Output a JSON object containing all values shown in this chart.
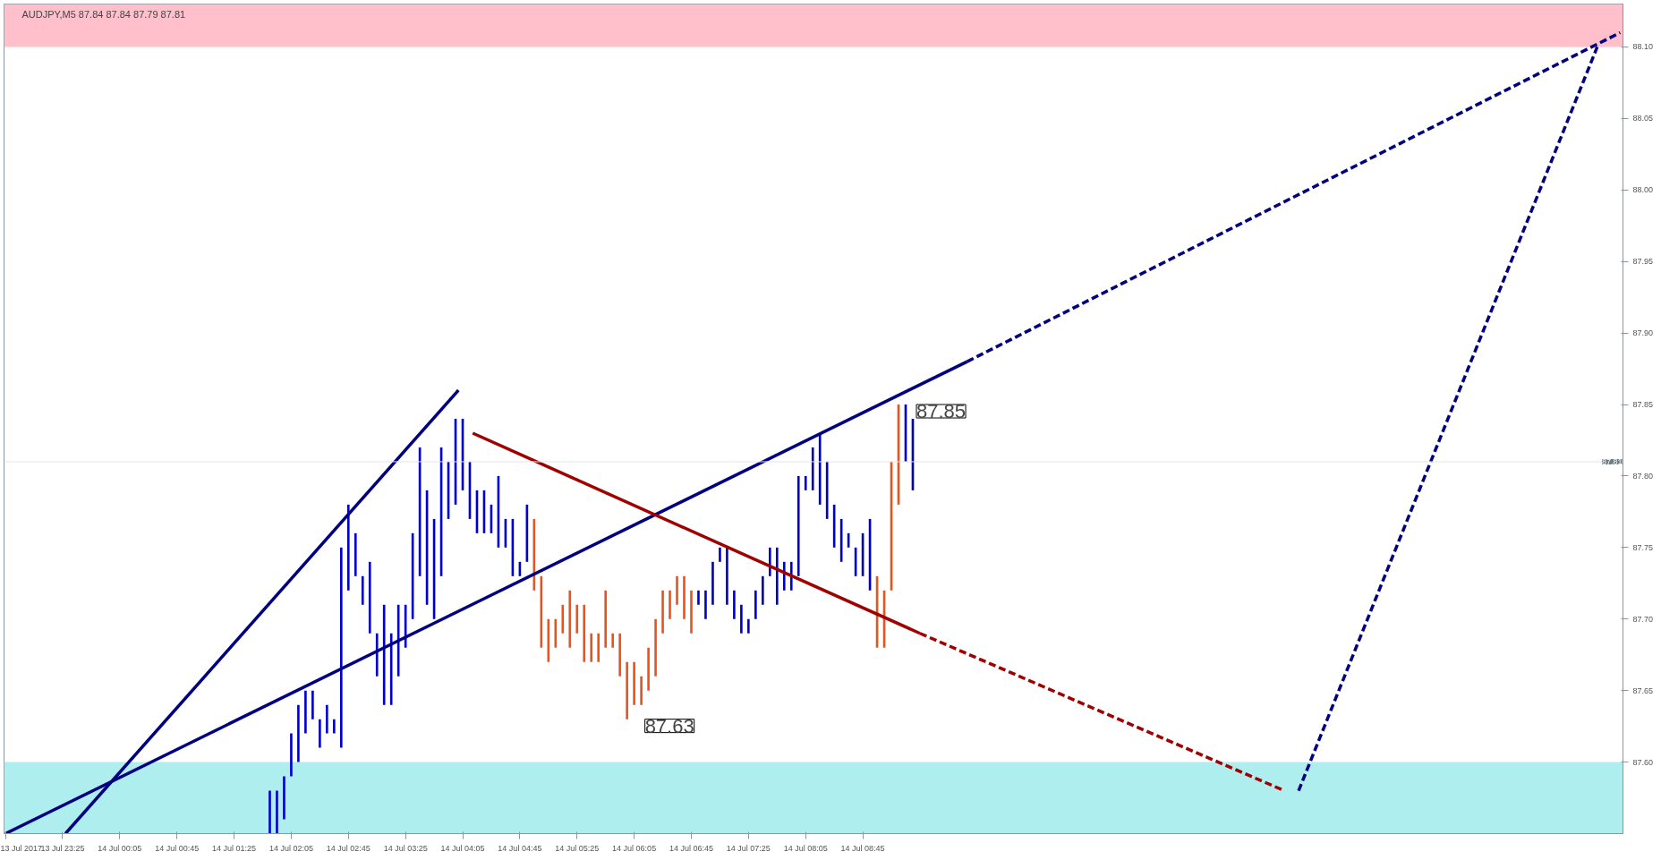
{
  "chart_data": {
    "type": "bar",
    "title": "AUDJPY,M5  87.84 87.84 87.79 87.81",
    "xlim": [
      "2017-07-13T22:44",
      "2017-07-14T17:37"
    ],
    "ylim": [
      87.55,
      88.13
    ],
    "xticks": [
      {
        "value": "2017-07-13T22:45",
        "label": "13 Jul 2017"
      },
      {
        "value": "2017-07-13T23:25",
        "label": "13 Jul 23:25"
      },
      {
        "value": "2017-07-14T00:05",
        "label": "14 Jul 00:05"
      },
      {
        "value": "2017-07-14T00:45",
        "label": "14 Jul 00:45"
      },
      {
        "value": "2017-07-14T01:25",
        "label": "14 Jul 01:25"
      },
      {
        "value": "2017-07-14T02:05",
        "label": "14 Jul 02:05"
      },
      {
        "value": "2017-07-14T02:45",
        "label": "14 Jul 02:45"
      },
      {
        "value": "2017-07-14T03:25",
        "label": "14 Jul 03:25"
      },
      {
        "value": "2017-07-14T04:05",
        "label": "14 Jul 04:05"
      },
      {
        "value": "2017-07-14T04:45",
        "label": "14 Jul 04:45"
      },
      {
        "value": "2017-07-14T05:25",
        "label": "14 Jul 05:25"
      },
      {
        "value": "2017-07-14T06:05",
        "label": "14 Jul 06:05"
      },
      {
        "value": "2017-07-14T06:45",
        "label": "14 Jul 06:45"
      },
      {
        "value": "2017-07-14T07:25",
        "label": "14 Jul 07:25"
      },
      {
        "value": "2017-07-14T08:05",
        "label": "14 Jul 08:05"
      },
      {
        "value": "2017-07-14T08:45",
        "label": "14 Jul 08:45"
      }
    ],
    "yticks": [
      {
        "value": 87.6,
        "label": "87.60"
      },
      {
        "value": 87.65,
        "label": "87.65"
      },
      {
        "value": 87.7,
        "label": "87.70"
      },
      {
        "value": 87.75,
        "label": "87.75"
      },
      {
        "value": 87.8,
        "label": "87.80"
      },
      {
        "value": 87.85,
        "label": "87.85"
      },
      {
        "value": 87.9,
        "label": "87.90"
      },
      {
        "value": 87.95,
        "label": "87.95"
      },
      {
        "value": 88.0,
        "label": "88.00"
      },
      {
        "value": 88.05,
        "label": "88.05"
      },
      {
        "value": 88.1,
        "label": "88.10"
      }
    ],
    "bands": [
      {
        "axis": "y",
        "from": 88.1,
        "to": 88.13,
        "color": "#ffc0cb"
      },
      {
        "axis": "y",
        "from": 87.55,
        "to": 87.6,
        "color": "#afeeee"
      }
    ],
    "ref_lines": [
      {
        "axis": "y",
        "value": 87.81,
        "label": "87.81",
        "color": "#e4e4f0"
      }
    ],
    "annotations": [
      {
        "text": "87.63",
        "x": "2017-07-14T06:00",
        "y": 87.63
      },
      {
        "text": "87.85",
        "x": "2017-07-14T09:10",
        "y": 87.85
      }
    ],
    "series": [
      {
        "x": [
          "2017-07-14T01:50",
          "2017-07-14T01:55",
          "2017-07-14T02:00",
          "2017-07-14T02:05",
          "2017-07-14T02:10",
          "2017-07-14T02:15",
          "2017-07-14T02:20",
          "2017-07-14T02:25",
          "2017-07-14T02:30",
          "2017-07-14T02:35",
          "2017-07-14T02:40",
          "2017-07-14T02:45",
          "2017-07-14T02:50",
          "2017-07-14T02:55",
          "2017-07-14T03:00",
          "2017-07-14T03:05",
          "2017-07-14T03:10",
          "2017-07-14T03:15",
          "2017-07-14T03:20",
          "2017-07-14T03:25",
          "2017-07-14T03:30",
          "2017-07-14T03:35",
          "2017-07-14T03:40",
          "2017-07-14T03:45",
          "2017-07-14T03:50",
          "2017-07-14T03:55",
          "2017-07-14T04:00",
          "2017-07-14T04:05",
          "2017-07-14T04:10",
          "2017-07-14T04:15",
          "2017-07-14T04:20",
          "2017-07-14T04:25",
          "2017-07-14T04:30",
          "2017-07-14T04:35",
          "2017-07-14T04:40",
          "2017-07-14T04:45",
          "2017-07-14T04:50",
          "2017-07-14T04:55",
          "2017-07-14T05:00",
          "2017-07-14T05:05",
          "2017-07-14T05:10",
          "2017-07-14T05:15",
          "2017-07-14T05:20",
          "2017-07-14T05:25",
          "2017-07-14T05:30",
          "2017-07-14T05:35",
          "2017-07-14T05:40",
          "2017-07-14T05:45",
          "2017-07-14T05:50",
          "2017-07-14T05:55",
          "2017-07-14T06:00",
          "2017-07-14T06:05",
          "2017-07-14T06:10",
          "2017-07-14T06:15",
          "2017-07-14T06:20",
          "2017-07-14T06:25",
          "2017-07-14T06:30",
          "2017-07-14T06:35",
          "2017-07-14T06:40",
          "2017-07-14T06:45",
          "2017-07-14T06:50",
          "2017-07-14T06:55",
          "2017-07-14T07:00",
          "2017-07-14T07:05",
          "2017-07-14T07:10",
          "2017-07-14T07:15",
          "2017-07-14T07:20",
          "2017-07-14T07:25",
          "2017-07-14T07:30",
          "2017-07-14T07:35",
          "2017-07-14T07:40",
          "2017-07-14T07:45",
          "2017-07-14T07:50",
          "2017-07-14T07:55",
          "2017-07-14T08:00",
          "2017-07-14T08:05",
          "2017-07-14T08:10",
          "2017-07-14T08:15",
          "2017-07-14T08:20",
          "2017-07-14T08:25",
          "2017-07-14T08:30",
          "2017-07-14T08:35",
          "2017-07-14T08:40",
          "2017-07-14T08:45",
          "2017-07-14T08:50",
          "2017-07-14T08:55",
          "2017-07-14T09:00",
          "2017-07-14T09:05",
          "2017-07-14T09:10",
          "2017-07-14T09:15",
          "2017-07-14T09:20"
        ],
        "base": [
          87.55,
          87.55,
          87.56,
          87.59,
          87.6,
          87.62,
          87.63,
          87.61,
          87.62,
          87.62,
          87.61,
          87.72,
          87.73,
          87.71,
          87.69,
          87.66,
          87.64,
          87.64,
          87.66,
          87.68,
          87.7,
          87.73,
          87.71,
          87.7,
          87.73,
          87.77,
          87.78,
          87.79,
          87.77,
          87.76,
          87.76,
          87.76,
          87.75,
          87.75,
          87.73,
          87.73,
          87.74,
          87.72,
          87.68,
          87.67,
          87.68,
          87.69,
          87.68,
          87.69,
          87.67,
          87.67,
          87.67,
          87.68,
          87.68,
          87.66,
          87.63,
          87.64,
          87.64,
          87.65,
          87.66,
          87.69,
          87.7,
          87.71,
          87.7,
          87.69,
          87.71,
          87.7,
          87.71,
          87.74,
          87.71,
          87.7,
          87.69,
          87.69,
          87.7,
          87.71,
          87.73,
          87.71,
          87.72,
          87.72,
          87.73,
          87.79,
          87.79,
          87.78,
          87.77,
          87.75,
          87.74,
          87.75,
          87.73,
          87.73,
          87.72,
          87.68,
          87.68,
          87.72,
          87.78,
          87.81,
          87.79
        ],
        "values": [
          0.03,
          0.03,
          0.03,
          0.03,
          0.04,
          0.03,
          0.02,
          0.02,
          0.02,
          0.01,
          0.14,
          0.06,
          0.03,
          0.02,
          0.05,
          0.03,
          0.07,
          0.05,
          0.05,
          0.03,
          0.06,
          0.09,
          0.08,
          0.07,
          0.09,
          0.04,
          0.06,
          0.05,
          0.04,
          0.03,
          0.03,
          0.02,
          0.05,
          0.02,
          0.04,
          0.01,
          0.04,
          0.05,
          0.05,
          0.03,
          0.02,
          0.02,
          0.04,
          0.02,
          0.04,
          0.02,
          0.02,
          0.04,
          0.01,
          0.03,
          0.04,
          0.03,
          0.02,
          0.03,
          0.04,
          0.03,
          0.02,
          0.02,
          0.03,
          0.03,
          0.01,
          0.02,
          0.03,
          0.01,
          0.04,
          0.02,
          0.02,
          0.01,
          0.02,
          0.02,
          0.02,
          0.04,
          0.02,
          0.02,
          0.07,
          0.01,
          0.03,
          0.05,
          0.04,
          0.03,
          0.03,
          0.01,
          0.02,
          0.03,
          0.05,
          0.05,
          0.04,
          0.09,
          0.07,
          0.04,
          0.05
        ],
        "colors": [
          "#0000cd",
          "#0000cd",
          "#0000cd",
          "#0000cd",
          "#0000cd",
          "#0000cd",
          "#0000cd",
          "#0000cd",
          "#0000cd",
          "#0000cd",
          "#0000cd",
          "#0000cd",
          "#0000cd",
          "#0000cd",
          "#0000cd",
          "#0000cd",
          "#0000cd",
          "#0000cd",
          "#0000cd",
          "#0000cd",
          "#0000cd",
          "#0000cd",
          "#0000cd",
          "#0000cd",
          "#0000cd",
          "#0000cd",
          "#0000cd",
          "#0000cd",
          "#0000cd",
          "#0000cd",
          "#0000cd",
          "#0000cd",
          "#0000cd",
          "#0000cd",
          "#0000cd",
          "#0000cd",
          "#0000cd",
          "#e8541c",
          "#e8541c",
          "#e8541c",
          "#e8541c",
          "#e8541c",
          "#e8541c",
          "#e8541c",
          "#e8541c",
          "#e8541c",
          "#e8541c",
          "#e8541c",
          "#e8541c",
          "#e8541c",
          "#e8541c",
          "#e8541c",
          "#e8541c",
          "#e8541c",
          "#e8541c",
          "#e8541c",
          "#e8541c",
          "#e8541c",
          "#e8541c",
          "#e8541c",
          "#0000cd",
          "#0000cd",
          "#0000cd",
          "#0000cd",
          "#0000cd",
          "#0000cd",
          "#0000cd",
          "#0000cd",
          "#0000cd",
          "#0000cd",
          "#0000cd",
          "#0000cd",
          "#0000cd",
          "#0000cd",
          "#0000cd",
          "#0000cd",
          "#0000cd",
          "#0000cd",
          "#0000cd",
          "#0000cd",
          "#0000cd",
          "#0000cd",
          "#0000cd",
          "#0000cd",
          "#0000cd",
          "#e8541c",
          "#e8541c",
          "#e8541c",
          "#e8541c",
          "#0000cd",
          "#0000cd"
        ]
      },
      {
        "type": "line",
        "color": "#000080",
        "line_style": "solid",
        "x": [
          "2017-07-13T22:45",
          "2017-07-14T09:58"
        ],
        "values": [
          87.55,
          87.88
        ]
      },
      {
        "type": "line",
        "color": "#000080",
        "line_style": "dashed",
        "x": [
          "2017-07-14T09:58",
          "2017-07-14T17:35"
        ],
        "values": [
          87.88,
          88.11
        ]
      },
      {
        "type": "line",
        "color": "#000080",
        "line_style": "solid",
        "x": [
          "2017-07-13T23:27",
          "2017-07-14T04:02"
        ],
        "values": [
          87.55,
          87.86
        ]
      },
      {
        "type": "line",
        "color": "#a00000",
        "line_style": "solid",
        "x": [
          "2017-07-14T04:12",
          "2017-07-14T09:25"
        ],
        "values": [
          87.83,
          87.69
        ]
      },
      {
        "type": "line",
        "color": "#a00000",
        "line_style": "dashed",
        "x": [
          "2017-07-14T09:25",
          "2017-07-14T13:40"
        ],
        "values": [
          87.69,
          87.58
        ]
      },
      {
        "type": "line",
        "color": "#000080",
        "line_style": "dashed",
        "x": [
          "2017-07-14T13:50",
          "2017-07-14T17:19"
        ],
        "values": [
          87.58,
          88.1
        ]
      }
    ]
  }
}
